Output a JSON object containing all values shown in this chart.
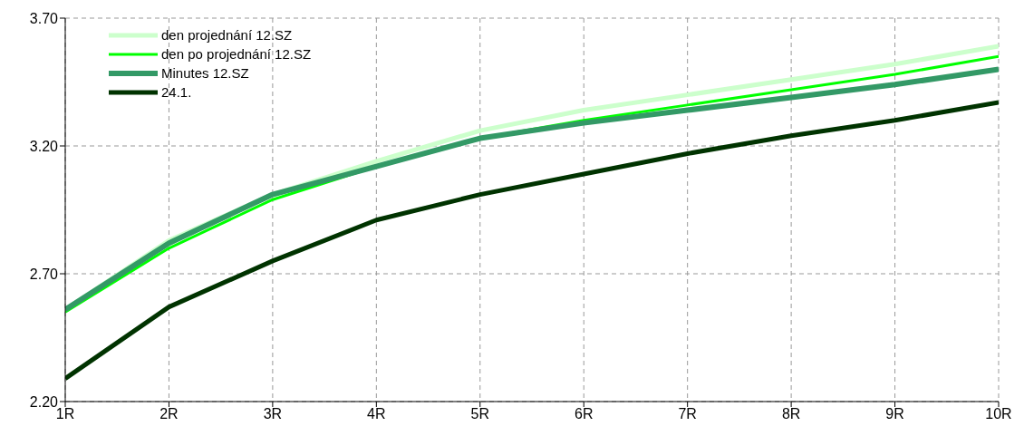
{
  "chart_data": {
    "type": "line",
    "categories": [
      "1R",
      "2R",
      "3R",
      "4R",
      "5R",
      "6R",
      "7R",
      "8R",
      "9R",
      "10R"
    ],
    "series": [
      {
        "name": "den projednání 12.SZ",
        "color": "#ccffcc",
        "values": [
          2.56,
          2.83,
          3.01,
          3.14,
          3.26,
          3.34,
          3.4,
          3.46,
          3.52,
          3.59
        ]
      },
      {
        "name": "den po projednání 12.SZ",
        "color": "#00ff00",
        "values": [
          2.55,
          2.8,
          2.99,
          3.12,
          3.23,
          3.3,
          3.36,
          3.42,
          3.48,
          3.55
        ]
      },
      {
        "name": "Minutes 12.SZ",
        "color": "#339966",
        "values": [
          2.56,
          2.82,
          3.01,
          3.12,
          3.23,
          3.29,
          3.34,
          3.39,
          3.44,
          3.5
        ]
      },
      {
        "name": "24.1.",
        "color": "#003300",
        "values": [
          2.29,
          2.57,
          2.75,
          2.91,
          3.01,
          3.09,
          3.17,
          3.24,
          3.3,
          3.37
        ]
      }
    ],
    "ylim": [
      2.2,
      3.7
    ],
    "yticks": [
      {
        "value": 2.2,
        "label": "2.20"
      },
      {
        "value": 2.7,
        "label": "2.70"
      },
      {
        "value": 3.2,
        "label": "3.20"
      },
      {
        "value": 3.7,
        "label": "3.70"
      }
    ],
    "grid": true,
    "legend": "top left",
    "marker": "none",
    "line_style": "solid"
  }
}
